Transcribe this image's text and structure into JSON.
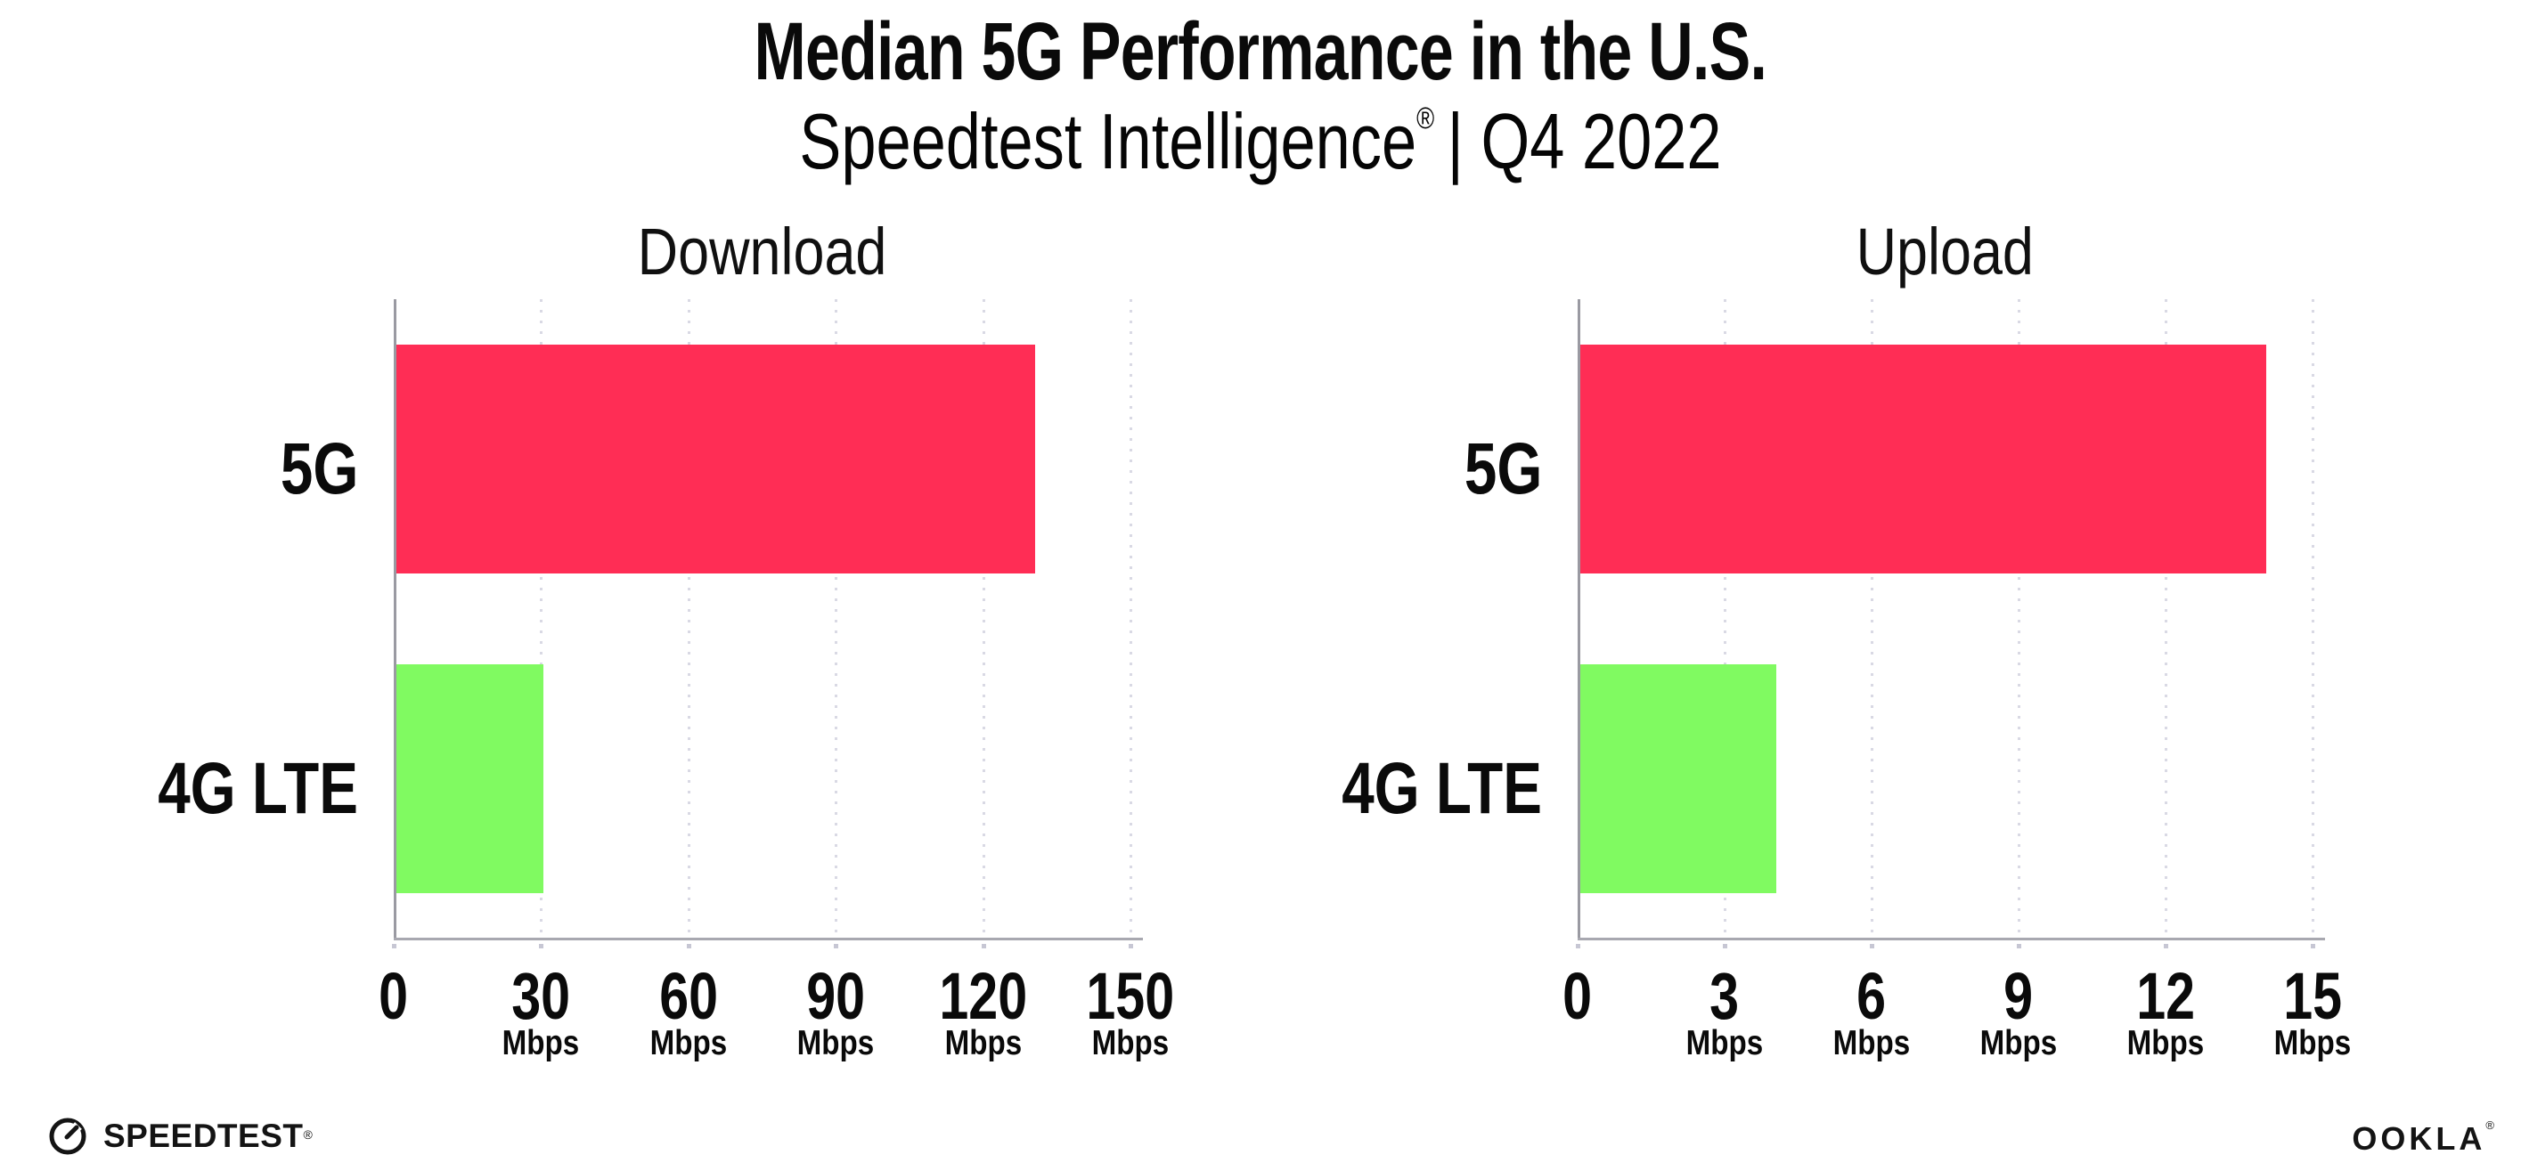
{
  "header": {
    "title": "Median 5G Performance in the U.S.",
    "subtitle_name": "Speedtest Intelligence",
    "subtitle_mark": "®",
    "subtitle_rest": "| Q4 2022"
  },
  "footer": {
    "speedtest_label": "SPEEDTEST",
    "speedtest_mark": "®",
    "speedtest_icon": "gauge-icon",
    "ookla_label": "OOKLA",
    "ookla_mark": "®"
  },
  "colors": {
    "bar_5g": "#ff2d55",
    "bar_4g_lte": "#80fa61",
    "axis": "#9a9aa2",
    "gridline": "#d9d9e4",
    "text": "#0a0a0a"
  },
  "chart_data": [
    {
      "type": "bar",
      "orientation": "horizontal",
      "title": "Download",
      "categories": [
        "5G",
        "4G LTE"
      ],
      "values": [
        130,
        30
      ],
      "unit": "Mbps",
      "xlim": [
        0,
        150
      ],
      "xticks": [
        0,
        30,
        60,
        90,
        120,
        150
      ],
      "tick_unit": "Mbps",
      "bar_colors": [
        "#ff2d55",
        "#80fa61"
      ],
      "grid": "dotted-vertical",
      "legend": "none",
      "xlabel": "",
      "ylabel": ""
    },
    {
      "type": "bar",
      "orientation": "horizontal",
      "title": "Upload",
      "categories": [
        "5G",
        "4G LTE"
      ],
      "values": [
        14,
        4
      ],
      "unit": "Mbps",
      "xlim": [
        0,
        15
      ],
      "xticks": [
        0,
        3,
        6,
        9,
        12,
        15
      ],
      "tick_unit": "Mbps",
      "bar_colors": [
        "#ff2d55",
        "#80fa61"
      ],
      "grid": "dotted-vertical",
      "legend": "none",
      "xlabel": "",
      "ylabel": ""
    }
  ]
}
